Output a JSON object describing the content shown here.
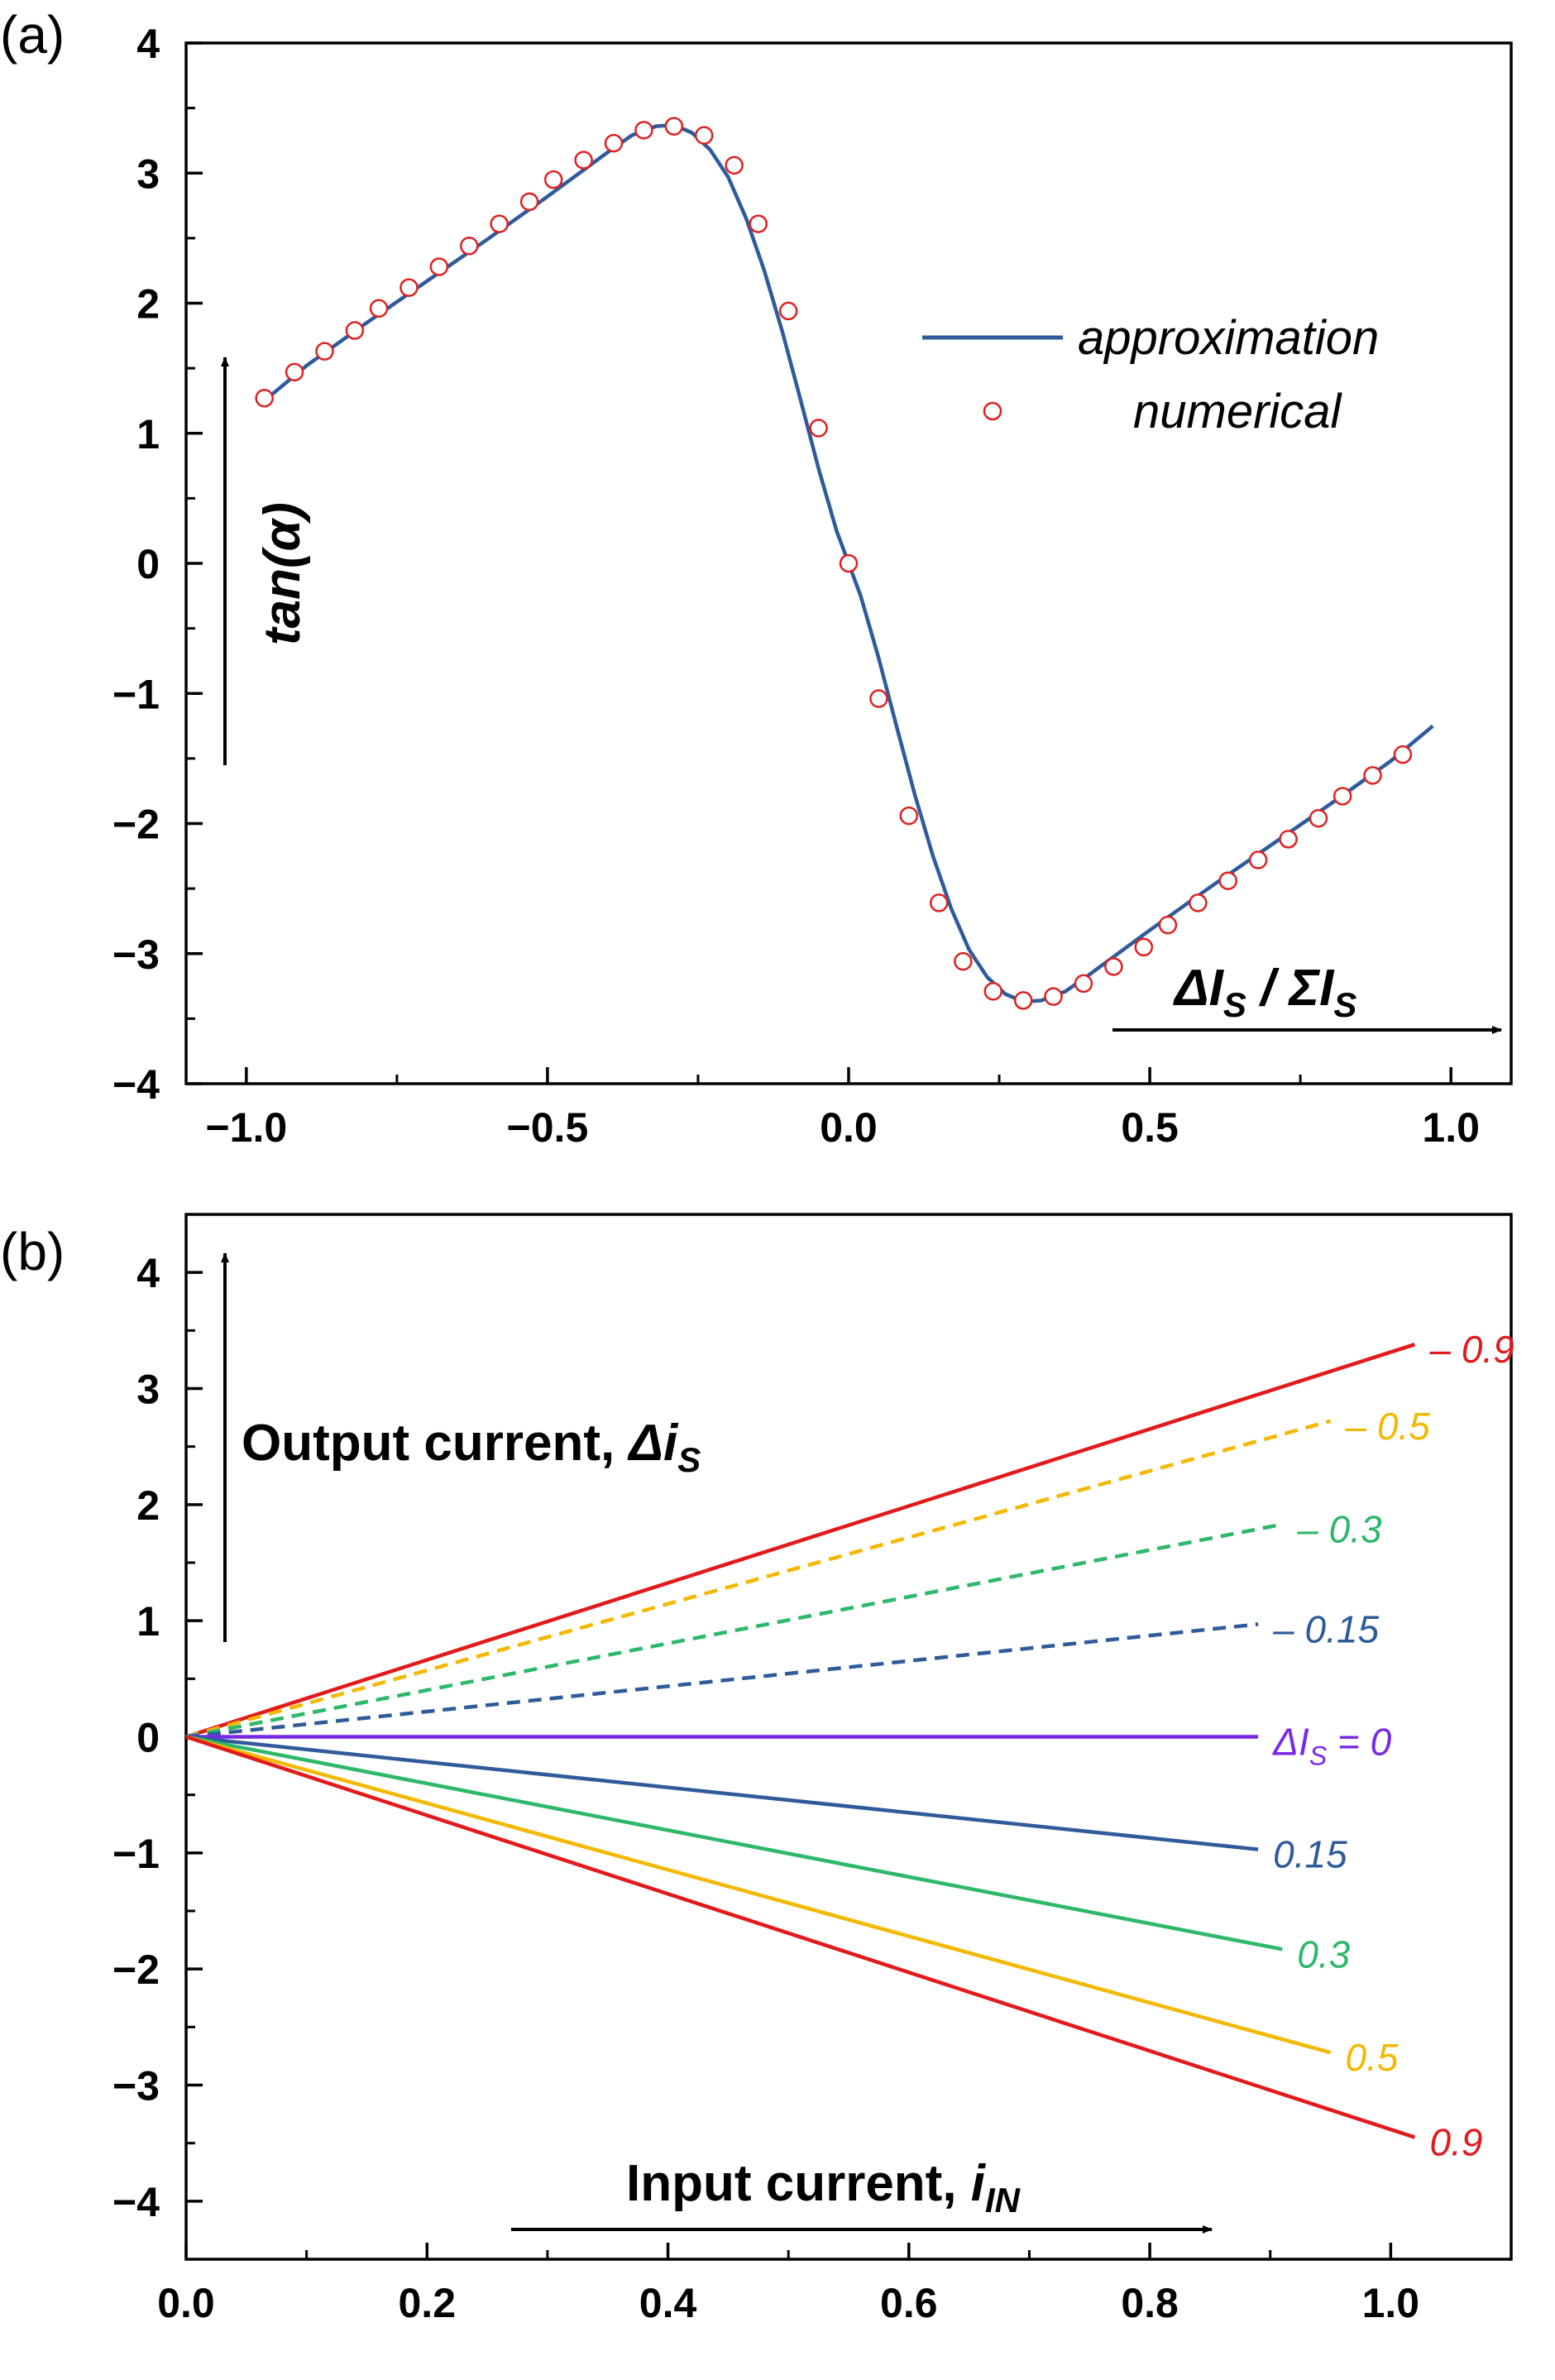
{
  "colors": {
    "approximation": "#2f5b9a",
    "numerical": "#e02020",
    "red": "#e31a1c",
    "yellow": "#f5b800",
    "green": "#2db86a",
    "blue": "#2f5b9a",
    "purple": "#7a28e8"
  },
  "panel_a": {
    "tag": "(a)",
    "ylabel": "tan(α)",
    "xlabel_parts": [
      "ΔI",
      "S",
      " / ΣI",
      "S"
    ],
    "legend": {
      "line": "approximation",
      "markers": "numerical",
      "placement": "top-right"
    },
    "chart_data": {
      "type": "line",
      "xlim": [
        -1.1,
        1.1
      ],
      "ylim": [
        -4,
        4
      ],
      "xticks": [
        -1.0,
        -0.5,
        0.0,
        0.5,
        1.0
      ],
      "xtick_labels": [
        "−1.0",
        "−0.5",
        "0.0",
        "0.5",
        "1.0"
      ],
      "yticks": [
        -4,
        -3,
        -2,
        -1,
        0,
        1,
        2,
        3,
        4
      ],
      "ytick_labels": [
        "−4",
        "−3",
        "−2",
        "−1",
        "0",
        "1",
        "2",
        "3",
        "4"
      ],
      "grid": false,
      "series": [
        {
          "name": "approximation",
          "style": "line",
          "x": [
            -0.97,
            -0.9,
            -0.8,
            -0.7,
            -0.6,
            -0.5,
            -0.45,
            -0.4,
            -0.36,
            -0.32,
            -0.29,
            -0.26,
            -0.23,
            -0.2,
            -0.17,
            -0.14,
            -0.11,
            -0.08,
            -0.05,
            -0.02,
            0.0,
            0.02,
            0.05,
            0.08,
            0.11,
            0.14,
            0.17,
            0.2,
            0.23,
            0.26,
            0.29,
            0.32,
            0.36,
            0.4,
            0.45,
            0.5,
            0.6,
            0.7,
            0.8,
            0.9,
            0.97
          ],
          "y": [
            1.25,
            1.52,
            1.85,
            2.17,
            2.49,
            2.82,
            2.99,
            3.16,
            3.29,
            3.36,
            3.37,
            3.31,
            3.18,
            2.97,
            2.65,
            2.25,
            1.78,
            1.26,
            0.73,
            0.25,
            0.0,
            -0.25,
            -0.73,
            -1.26,
            -1.78,
            -2.25,
            -2.65,
            -2.97,
            -3.18,
            -3.31,
            -3.37,
            -3.36,
            -3.29,
            -3.16,
            -2.99,
            -2.82,
            -2.49,
            -2.17,
            -1.85,
            -1.52,
            -1.25
          ]
        },
        {
          "name": "numerical",
          "style": "markers",
          "x": [
            -0.97,
            -0.92,
            -0.87,
            -0.82,
            -0.78,
            -0.73,
            -0.68,
            -0.63,
            -0.58,
            -0.53,
            -0.49,
            -0.44,
            -0.39,
            -0.34,
            -0.29,
            -0.24,
            -0.19,
            -0.15,
            -0.1,
            -0.05,
            0.0,
            0.05,
            0.1,
            0.15,
            0.19,
            0.24,
            0.29,
            0.34,
            0.39,
            0.44,
            0.49,
            0.53,
            0.58,
            0.63,
            0.68,
            0.73,
            0.78,
            0.82,
            0.87,
            0.92
          ],
          "y": [
            1.27,
            1.47,
            1.63,
            1.79,
            1.96,
            2.12,
            2.28,
            2.44,
            2.61,
            2.78,
            2.95,
            3.1,
            3.23,
            3.33,
            3.36,
            3.29,
            3.06,
            2.61,
            1.94,
            1.04,
            0.0,
            -1.04,
            -1.94,
            -2.61,
            -3.06,
            -3.29,
            -3.36,
            -3.33,
            -3.23,
            -3.1,
            -2.95,
            -2.78,
            -2.61,
            -2.44,
            -2.28,
            -2.12,
            -1.96,
            -1.79,
            -1.63,
            -1.47
          ]
        }
      ]
    }
  },
  "panel_b": {
    "tag": "(b)",
    "ylabel_parts": [
      "Output current, ",
      "Δi",
      "S"
    ],
    "xlabel_parts": [
      "Input current, ",
      "i",
      "IN"
    ],
    "chart_data": {
      "type": "line",
      "xlim": [
        0.0,
        1.1
      ],
      "ylim": [
        -4.5,
        4.5
      ],
      "xticks": [
        0.0,
        0.2,
        0.4,
        0.6,
        0.8,
        1.0
      ],
      "xtick_labels": [
        "0.0",
        "0.2",
        "0.4",
        "0.6",
        "0.8",
        "1.0"
      ],
      "yticks": [
        -4,
        -3,
        -2,
        -1,
        0,
        1,
        2,
        3,
        4
      ],
      "ytick_labels": [
        "−4",
        "−3",
        "−2",
        "−1",
        "0",
        "1",
        "2",
        "3",
        "4"
      ],
      "grid": false,
      "series": [
        {
          "label": "– 0.9",
          "color": "red",
          "dash": false,
          "x": [
            0.0,
            1.02
          ],
          "y": [
            0.0,
            3.38
          ]
        },
        {
          "label": "– 0.5",
          "color": "yellow",
          "dash": true,
          "x": [
            0.0,
            0.95
          ],
          "y": [
            0.0,
            2.72
          ]
        },
        {
          "label": "– 0.3",
          "color": "green",
          "dash": true,
          "x": [
            0.0,
            0.91
          ],
          "y": [
            0.0,
            1.83
          ]
        },
        {
          "label": "– 0.15",
          "color": "blue",
          "dash": true,
          "x": [
            0.0,
            0.89
          ],
          "y": [
            0.0,
            0.97
          ]
        },
        {
          "label": "0",
          "label_prefix": [
            "ΔI",
            "S",
            " = "
          ],
          "color": "purple",
          "dash": false,
          "x": [
            0.0,
            0.89
          ],
          "y": [
            0.0,
            0.0
          ]
        },
        {
          "label": "0.15",
          "color": "blue",
          "dash": false,
          "x": [
            0.0,
            0.89
          ],
          "y": [
            0.0,
            -0.97
          ]
        },
        {
          "label": "0.3",
          "color": "green",
          "dash": false,
          "x": [
            0.0,
            0.91
          ],
          "y": [
            0.0,
            -1.83
          ]
        },
        {
          "label": "0.5",
          "color": "yellow",
          "dash": false,
          "x": [
            0.0,
            0.95
          ],
          "y": [
            0.0,
            -2.72
          ]
        },
        {
          "label": "0.9",
          "color": "red",
          "dash": false,
          "x": [
            0.0,
            1.02
          ],
          "y": [
            0.0,
            -3.45
          ]
        }
      ]
    }
  }
}
